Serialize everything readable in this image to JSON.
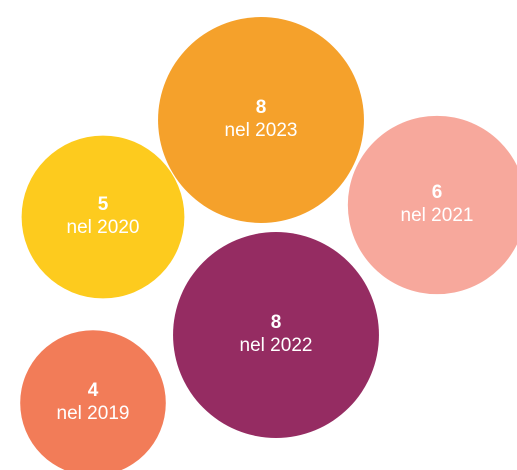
{
  "chart_data": {
    "type": "packed-bubble",
    "categories": [
      "nel 2019",
      "nel 2020",
      "nel 2021",
      "nel 2022",
      "nel 2023"
    ],
    "values": [
      4,
      5,
      6,
      8,
      8
    ],
    "colors": [
      "#f27c58",
      "#fdcb1e",
      "#f7a89c",
      "#952c62",
      "#f5a12b"
    ]
  }
}
